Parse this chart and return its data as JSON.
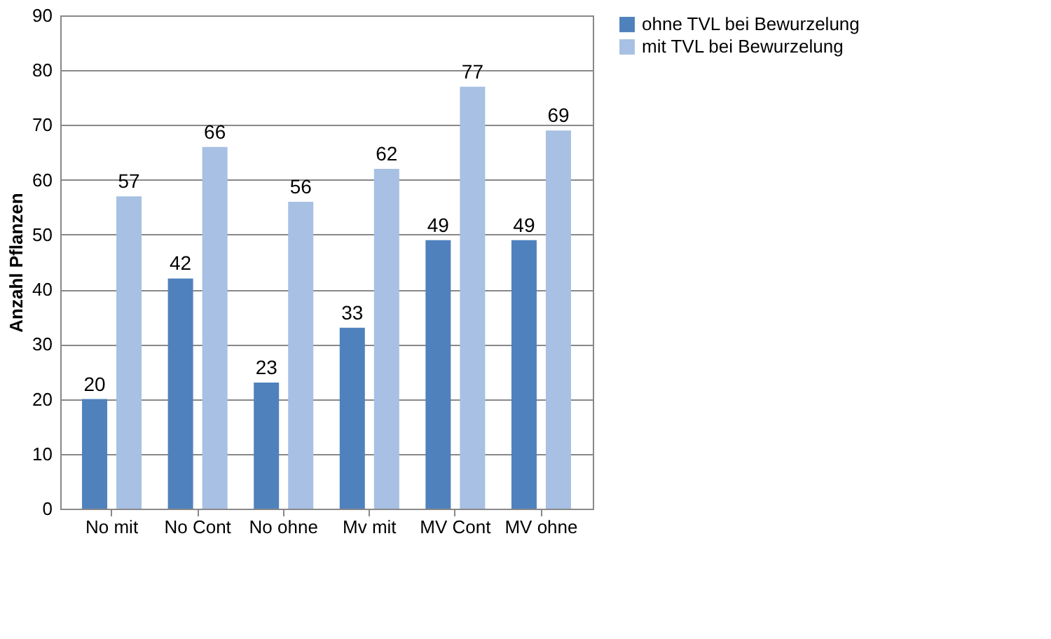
{
  "chart_data": {
    "type": "bar",
    "ylabel": "Anzahl Pflanzen",
    "categories": [
      "No mit",
      "No Cont",
      "No ohne",
      "Mv mit",
      "MV Cont",
      "MV ohne"
    ],
    "series": [
      {
        "name": "ohne TVL bei Bewurzelung",
        "color": "#4f81bd",
        "values": [
          20,
          42,
          23,
          33,
          49,
          49
        ]
      },
      {
        "name": "mit TVL bei Bewurzelung",
        "color": "#a7c0e3",
        "values": [
          57,
          66,
          56,
          62,
          77,
          69
        ]
      }
    ],
    "ylim": [
      0,
      90
    ],
    "yticks": [
      0,
      10,
      20,
      30,
      40,
      50,
      60,
      70,
      80,
      90
    ],
    "grid": "y",
    "legend": "right",
    "data_labels": true
  }
}
